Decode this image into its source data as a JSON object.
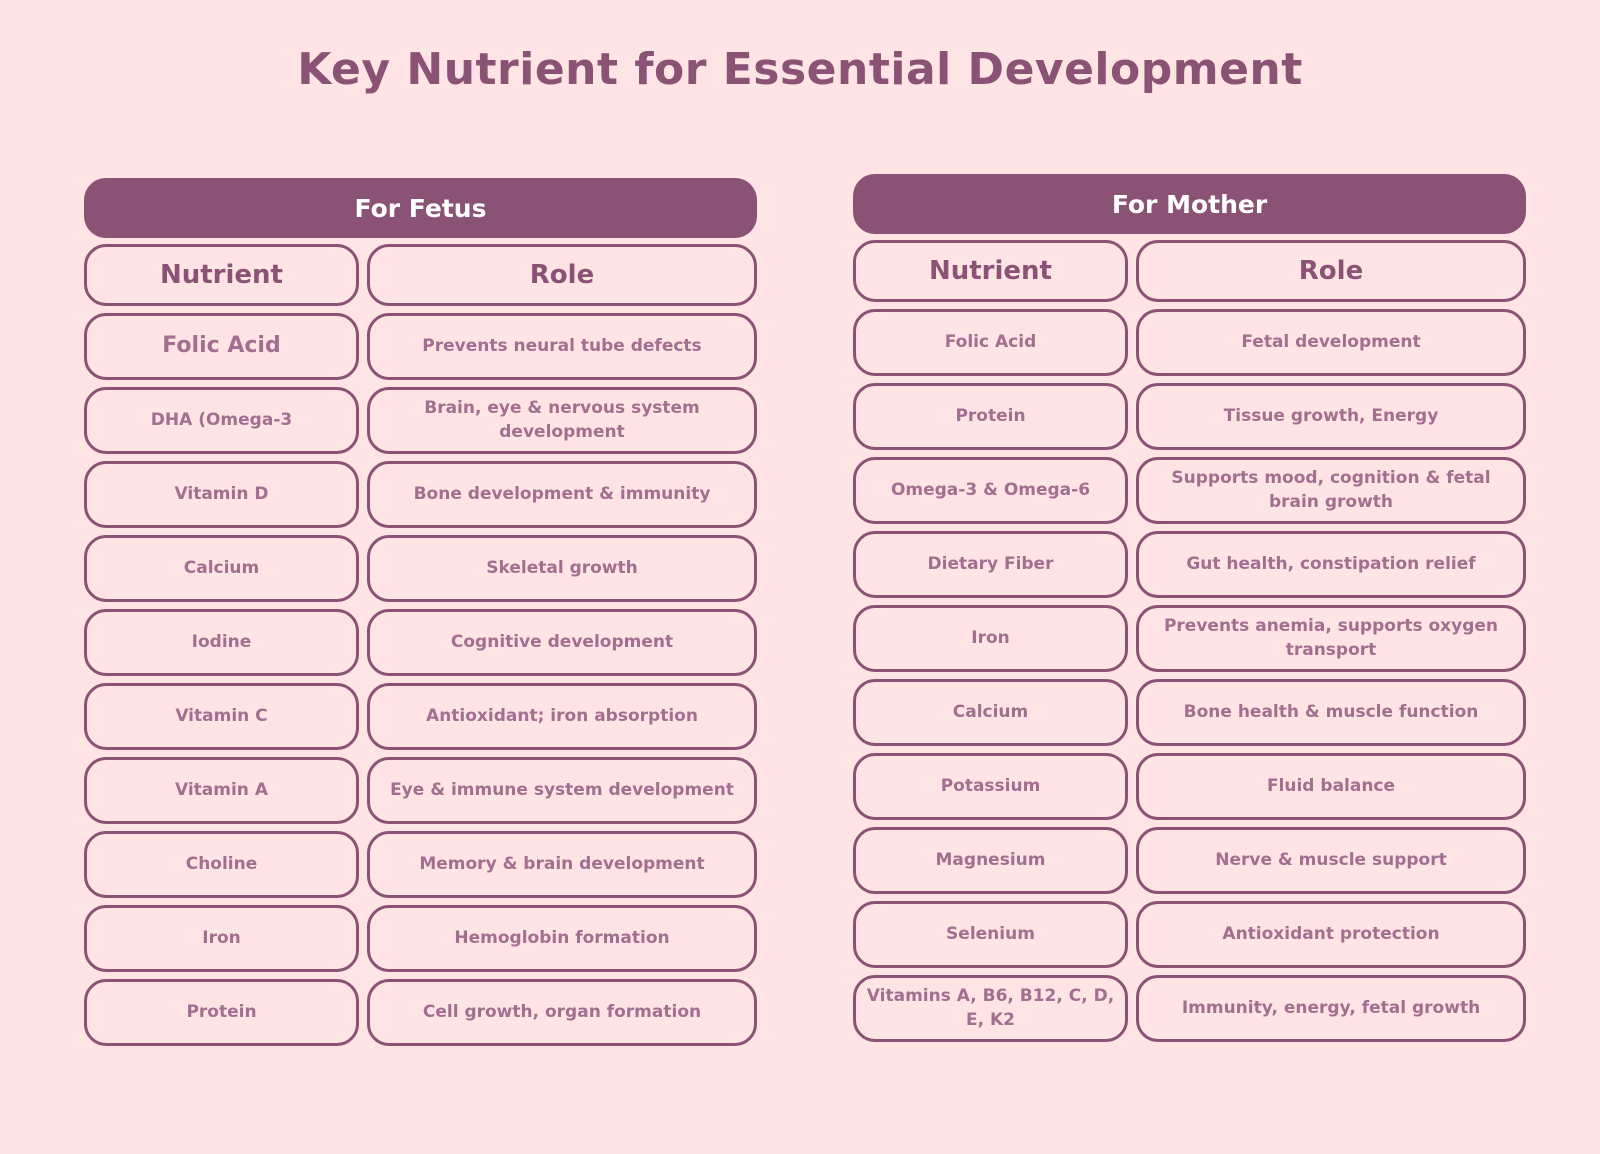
{
  "title": "Key Nutrient for Essential Development",
  "colors": {
    "background": "#fee4e4",
    "accent": "#8a5274",
    "text": "#a26f90"
  },
  "fetus": {
    "heading": "For Fetus",
    "columns": [
      "Nutrient",
      "Role"
    ],
    "rows": [
      {
        "nutrient": "Folic Acid",
        "role": "Prevents neural tube defects"
      },
      {
        "nutrient": "DHA (Omega-3",
        "role": "Brain, eye & nervous system development"
      },
      {
        "nutrient": "Vitamin D",
        "role": "Bone development & immunity"
      },
      {
        "nutrient": "Calcium",
        "role": "Skeletal growth"
      },
      {
        "nutrient": "Iodine",
        "role": "Cognitive development"
      },
      {
        "nutrient": "Vitamin C",
        "role": "Antioxidant; iron absorption"
      },
      {
        "nutrient": "Vitamin A",
        "role": "Eye & immune system development"
      },
      {
        "nutrient": "Choline",
        "role": "Memory & brain development"
      },
      {
        "nutrient": "Iron",
        "role": "Hemoglobin formation"
      },
      {
        "nutrient": "Protein",
        "role": "Cell growth, organ formation"
      }
    ]
  },
  "mother": {
    "heading": "For Mother",
    "columns": [
      "Nutrient",
      "Role"
    ],
    "rows": [
      {
        "nutrient": "Folic Acid",
        "role": "Fetal development"
      },
      {
        "nutrient": "Protein",
        "role": "Tissue growth, Energy"
      },
      {
        "nutrient": "Omega-3 & Omega-6",
        "role": "Supports mood, cognition & fetal brain growth"
      },
      {
        "nutrient": "Dietary Fiber",
        "role": "Gut health, constipation relief"
      },
      {
        "nutrient": "Iron",
        "role": "Prevents anemia, supports oxygen transport"
      },
      {
        "nutrient": "Calcium",
        "role": "Bone health & muscle function"
      },
      {
        "nutrient": "Potassium",
        "role": "Fluid balance"
      },
      {
        "nutrient": "Magnesium",
        "role": "Nerve & muscle support"
      },
      {
        "nutrient": "Selenium",
        "role": "Antioxidant protection"
      },
      {
        "nutrient": "Vitamins A, B6, B12, C, D, E, K2",
        "role": "Immunity, energy, fetal growth"
      }
    ]
  }
}
